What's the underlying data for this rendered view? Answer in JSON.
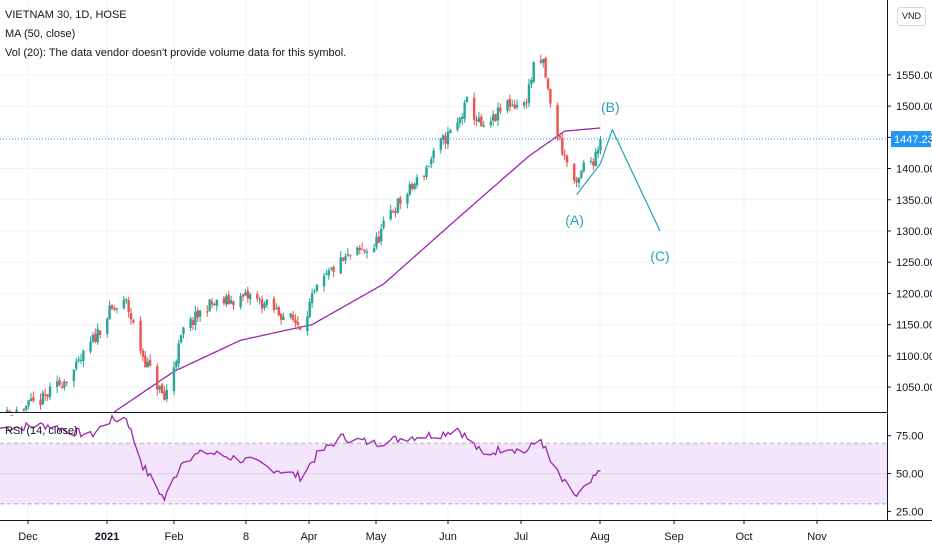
{
  "legend": {
    "symbol": "VIETNAM 30, 1D, HOSE",
    "ma": "MA (50, close)",
    "vol": "Vol (20): The data vendor doesn't provide volume data for this symbol.",
    "rsi": "RSI (14, close)"
  },
  "currency": "VND",
  "chart_data": [
    {
      "type": "candlestick",
      "title": "VIETNAM 30, 1D, HOSE",
      "x_labels": [
        "Dec",
        "2021",
        "Feb",
        "8",
        "Apr",
        "May",
        "Jun",
        "Jul",
        "Aug",
        "Sep",
        "Oct",
        "Nov"
      ],
      "y_ticks": [
        1050,
        1100,
        1150,
        1200,
        1250,
        1300,
        1350,
        1400,
        1450,
        1500,
        1550
      ],
      "y_tick_labels": [
        "1050.00",
        "1100.00",
        "1150.00",
        "1200.00",
        "1250.00",
        "1300.00",
        "1350.00",
        "1400.00",
        "1450.00",
        "1500.00",
        "1550.00"
      ],
      "ylim": [
        1010,
        1670
      ],
      "last_price": 1447.23,
      "last_price_label": "1447.23",
      "trend_waypoints": [
        {
          "date": "2020-11-20",
          "close": 1000
        },
        {
          "date": "2020-12-08",
          "close": 1030
        },
        {
          "date": "2020-12-22",
          "close": 1080
        },
        {
          "date": "2021-01-05",
          "close": 1170
        },
        {
          "date": "2021-01-12",
          "close": 1185
        },
        {
          "date": "2021-01-19",
          "close": 1100
        },
        {
          "date": "2021-01-28",
          "close": 1030
        },
        {
          "date": "2021-02-05",
          "close": 1140
        },
        {
          "date": "2021-02-15",
          "close": 1180
        },
        {
          "date": "2021-03-05",
          "close": 1195
        },
        {
          "date": "2021-03-26",
          "close": 1150
        },
        {
          "date": "2021-04-02",
          "close": 1205
        },
        {
          "date": "2021-04-09",
          "close": 1240
        },
        {
          "date": "2021-04-16",
          "close": 1260
        },
        {
          "date": "2021-04-26",
          "close": 1275
        },
        {
          "date": "2021-05-03",
          "close": 1330
        },
        {
          "date": "2021-05-10",
          "close": 1360
        },
        {
          "date": "2021-05-17",
          "close": 1395
        },
        {
          "date": "2021-05-24",
          "close": 1440
        },
        {
          "date": "2021-05-31",
          "close": 1470
        },
        {
          "date": "2021-06-04",
          "close": 1505
        },
        {
          "date": "2021-06-11",
          "close": 1460
        },
        {
          "date": "2021-06-21",
          "close": 1505
        },
        {
          "date": "2021-06-28",
          "close": 1500
        },
        {
          "date": "2021-07-02",
          "close": 1560
        },
        {
          "date": "2021-07-06",
          "close": 1570
        },
        {
          "date": "2021-07-09",
          "close": 1500
        },
        {
          "date": "2021-07-14",
          "close": 1430
        },
        {
          "date": "2021-07-19",
          "close": 1380
        },
        {
          "date": "2021-07-20",
          "close": 1368
        },
        {
          "date": "2021-07-23",
          "close": 1405
        },
        {
          "date": "2021-07-27",
          "close": 1415
        },
        {
          "date": "2021-07-30",
          "close": 1447.23
        }
      ],
      "moving_average": {
        "name": "MA (50, close)",
        "color": "#9c27b0",
        "points": [
          {
            "date": "2021-01-05",
            "value": 1005
          },
          {
            "date": "2021-02-01",
            "value": 1075
          },
          {
            "date": "2021-03-01",
            "value": 1125
          },
          {
            "date": "2021-03-31",
            "value": 1150
          },
          {
            "date": "2021-04-30",
            "value": 1215
          },
          {
            "date": "2021-05-31",
            "value": 1320
          },
          {
            "date": "2021-06-30",
            "value": 1420
          },
          {
            "date": "2021-07-15",
            "value": 1460
          },
          {
            "date": "2021-07-30",
            "value": 1465
          }
        ]
      },
      "wave_projection": {
        "color": "#26a1bd",
        "points": [
          {
            "date": "2021-07-20",
            "value": 1358,
            "label": "(A)"
          },
          {
            "date": "2021-08-04",
            "value": 1462,
            "label": "(B)"
          },
          {
            "date": "2021-08-24",
            "value": 1300,
            "label": "(C)"
          }
        ]
      },
      "colors": {
        "up": "#26a69a",
        "down": "#ef5350",
        "last_price": "#2196f3"
      }
    },
    {
      "type": "line",
      "title": "RSI (14, close)",
      "y_ticks": [
        25,
        50,
        75
      ],
      "y_tick_labels": [
        "25.00",
        "50.00",
        "75.00"
      ],
      "ylim": [
        20,
        90
      ],
      "band": [
        30,
        70
      ],
      "series": [
        {
          "name": "RSI (14, close)",
          "color": "#9c27b0",
          "points": [
            {
              "date": "2020-11-20",
              "value": 80
            },
            {
              "date": "2020-12-10",
              "value": 82
            },
            {
              "date": "2020-12-28",
              "value": 75
            },
            {
              "date": "2021-01-05",
              "value": 85
            },
            {
              "date": "2021-01-12",
              "value": 87
            },
            {
              "date": "2021-01-19",
              "value": 55
            },
            {
              "date": "2021-01-28",
              "value": 33
            },
            {
              "date": "2021-02-05",
              "value": 60
            },
            {
              "date": "2021-02-15",
              "value": 64
            },
            {
              "date": "2021-03-05",
              "value": 58
            },
            {
              "date": "2021-03-26",
              "value": 48
            },
            {
              "date": "2021-04-02",
              "value": 62
            },
            {
              "date": "2021-04-12",
              "value": 74
            },
            {
              "date": "2021-04-26",
              "value": 70
            },
            {
              "date": "2021-05-10",
              "value": 74
            },
            {
              "date": "2021-05-24",
              "value": 76
            },
            {
              "date": "2021-05-31",
              "value": 80
            },
            {
              "date": "2021-06-11",
              "value": 62
            },
            {
              "date": "2021-06-21",
              "value": 68
            },
            {
              "date": "2021-06-28",
              "value": 64
            },
            {
              "date": "2021-07-05",
              "value": 73
            },
            {
              "date": "2021-07-09",
              "value": 58
            },
            {
              "date": "2021-07-14",
              "value": 45
            },
            {
              "date": "2021-07-20",
              "value": 35
            },
            {
              "date": "2021-07-25",
              "value": 42
            },
            {
              "date": "2021-07-30",
              "value": 52
            }
          ]
        }
      ],
      "colors": {
        "band": "#f3e5fb",
        "band_line": "#aeb3bd"
      }
    }
  ]
}
